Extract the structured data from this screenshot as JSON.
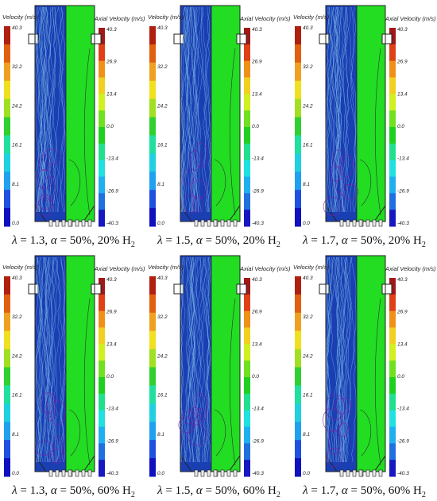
{
  "left_scale": {
    "title": "Velocity (m/s)",
    "ticks": [
      "40.3",
      "32.2",
      "24.2",
      "16.1",
      "8.1",
      "0.0"
    ]
  },
  "right_scale": {
    "title": "Axial Velocity (m/s)",
    "ticks": [
      "40.3",
      "26.9",
      "13.4",
      "0.0",
      "-13.4",
      "-26.9",
      "-40.3"
    ]
  },
  "panels": [
    {
      "lambda": "1.3",
      "alpha": "50%",
      "h2": "20%"
    },
    {
      "lambda": "1.5",
      "alpha": "50%",
      "h2": "20%"
    },
    {
      "lambda": "1.7",
      "alpha": "50%",
      "h2": "20%"
    },
    {
      "lambda": "1.3",
      "alpha": "50%",
      "h2": "60%"
    },
    {
      "lambda": "1.5",
      "alpha": "50%",
      "h2": "60%"
    },
    {
      "lambda": "1.7",
      "alpha": "50%",
      "h2": "60%"
    }
  ],
  "caption_parts": {
    "lambda_sym": "λ",
    "alpha_sym": "α",
    "eq": " = ",
    "sep": ", ",
    "h2_label": "H",
    "h2_sub": "2"
  },
  "colors": {
    "fluid_blue": "#1a3fb3",
    "axial_green": "#22dd22",
    "streamline": "#7ab8e8",
    "recirc": "#7a1fa8"
  }
}
